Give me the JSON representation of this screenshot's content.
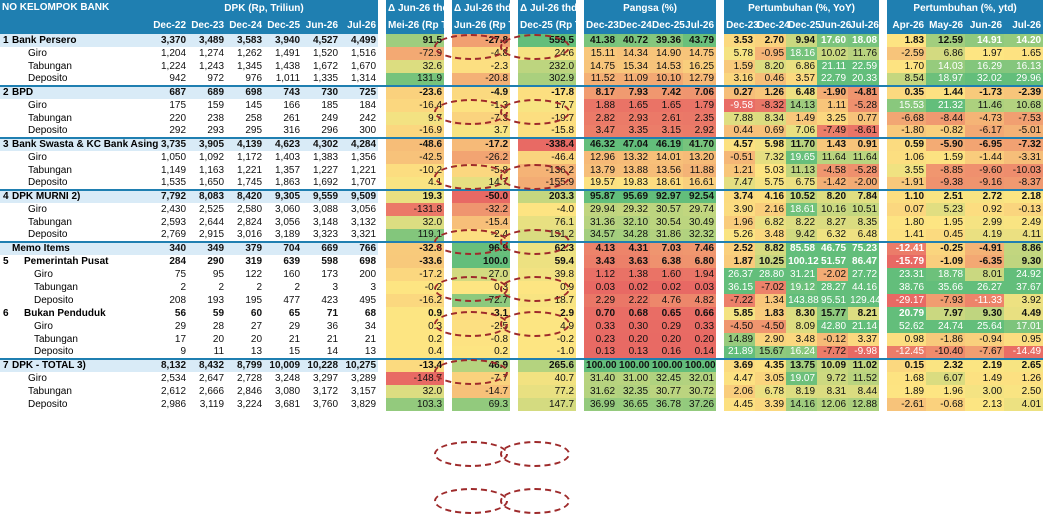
{
  "header": {
    "no": "NO",
    "kelompok": "KELOMPOK BANK",
    "dpk_title": "DPK (Rp, Triliun)",
    "dpk_cols": [
      "Dec-22",
      "Dec-23",
      "Dec-24",
      "Dec-25",
      "Jun-26",
      "Jul-26"
    ],
    "delta1_title": "Δ Jun-26 thd",
    "delta1_sub": "Mei-26 (Rp T)",
    "delta2_title": "Δ Jul-26 thd",
    "delta2_sub": "Jun-26 (Rp T)",
    "delta3_title": "Δ Jul-26 thd",
    "delta3_sub": "Dec-25 (Rp T)",
    "pangsa_title": "Pangsa (%)",
    "pangsa_cols": [
      "Dec-23",
      "Dec-24",
      "Dec-25",
      "Jul-26"
    ],
    "yoy_title": "Pertumbuhan (%, YoY)",
    "yoy_cols": [
      "Dec-23",
      "Dec-24",
      "Dec-25",
      "Jun-26",
      "Jul-26"
    ],
    "ytd_title": "Pertumbuhan (%, ytd)",
    "ytd_cols": [
      "Apr-26",
      "May-26",
      "Jun-26",
      "Jul-26"
    ]
  },
  "rows": [
    {
      "no": "1",
      "name": "Bank Persero",
      "type": "main",
      "dpk": [
        "3,370",
        "3,489",
        "3,583",
        "3,940",
        "4,527",
        "4,499"
      ],
      "d1": "91.5",
      "d2": "-27.8",
      "d3": "559.5",
      "pangsa": [
        "41.38",
        "40.72",
        "39.36",
        "43.79"
      ],
      "yoy": [
        "3.53",
        "2.70",
        "9.94",
        "17.60",
        "18.08"
      ],
      "ytd": [
        "1.83",
        "12.59",
        "14.91",
        "14.20"
      ]
    },
    {
      "no": "",
      "name": "Giro",
      "type": "sub",
      "dpk": [
        "1,204",
        "1,274",
        "1,262",
        "1,491",
        "1,520",
        "1,516"
      ],
      "d1": "-72.9",
      "d2": "-4.8",
      "d3": "24.6",
      "pangsa": [
        "15.11",
        "14.34",
        "14.90",
        "14.75"
      ],
      "yoy": [
        "5.78",
        "-0.95",
        "18.16",
        "10.02",
        "11.76"
      ],
      "ytd": [
        "-2.59",
        "6.86",
        "1.97",
        "1.65"
      ]
    },
    {
      "no": "",
      "name": "Tabungan",
      "type": "sub",
      "dpk": [
        "1,224",
        "1,243",
        "1,345",
        "1,438",
        "1,672",
        "1,670"
      ],
      "d1": "32.6",
      "d2": "-2.3",
      "d3": "232.0",
      "pangsa": [
        "14.75",
        "15.34",
        "14.53",
        "16.25"
      ],
      "yoy": [
        "1.59",
        "8.20",
        "6.86",
        "21.11",
        "22.59"
      ],
      "ytd": [
        "1.70",
        "14.03",
        "16.29",
        "16.13"
      ]
    },
    {
      "no": "",
      "name": "Deposito",
      "type": "sub",
      "dpk": [
        "942",
        "972",
        "976",
        "1,011",
        "1,335",
        "1,314"
      ],
      "d1": "131.9",
      "d2": "-20.8",
      "d3": "302.9",
      "pangsa": [
        "11.52",
        "11.09",
        "10.10",
        "12.79"
      ],
      "yoy": [
        "3.16",
        "0.46",
        "3.57",
        "22.79",
        "20.33"
      ],
      "ytd": [
        "8.54",
        "18.97",
        "32.02",
        "29.96"
      ]
    },
    {
      "no": "2",
      "name": "BPD",
      "type": "main",
      "dpk": [
        "687",
        "689",
        "698",
        "743",
        "730",
        "725"
      ],
      "d1": "-23.6",
      "d2": "-4.9",
      "d3": "-17.8",
      "pangsa": [
        "8.17",
        "7.93",
        "7.42",
        "7.06"
      ],
      "yoy": [
        "0.27",
        "1.26",
        "6.48",
        "-1.90",
        "-4.81"
      ],
      "ytd": [
        "0.35",
        "1.44",
        "-1.73",
        "-2.39"
      ]
    },
    {
      "no": "",
      "name": "Giro",
      "type": "sub",
      "dpk": [
        "175",
        "159",
        "145",
        "166",
        "185",
        "184"
      ],
      "d1": "-16.4",
      "d2": "-1.3",
      "d3": "17.7",
      "pangsa": [
        "1.88",
        "1.65",
        "1.65",
        "1.79"
      ],
      "yoy": [
        "-9.58",
        "-8.32",
        "14.13",
        "1.11",
        "-5.28"
      ],
      "ytd": [
        "15.53",
        "21.32",
        "11.46",
        "10.68"
      ]
    },
    {
      "no": "",
      "name": "Tabungan",
      "type": "sub",
      "dpk": [
        "220",
        "238",
        "258",
        "261",
        "249",
        "242"
      ],
      "d1": "9.7",
      "d2": "-7.3",
      "d3": "-19.7",
      "pangsa": [
        "2.82",
        "2.93",
        "2.61",
        "2.35"
      ],
      "yoy": [
        "7.88",
        "8.34",
        "1.49",
        "3.25",
        "0.77"
      ],
      "ytd": [
        "-6.68",
        "-8.44",
        "-4.73",
        "-7.53"
      ]
    },
    {
      "no": "",
      "name": "Deposito",
      "type": "sub",
      "dpk": [
        "292",
        "293",
        "295",
        "316",
        "296",
        "300"
      ],
      "d1": "-16.9",
      "d2": "3.7",
      "d3": "-15.8",
      "pangsa": [
        "3.47",
        "3.35",
        "3.15",
        "2.92"
      ],
      "yoy": [
        "0.44",
        "0.69",
        "7.06",
        "-7.49",
        "-8.61"
      ],
      "ytd": [
        "-1.80",
        "-0.82",
        "-6.17",
        "-5.01"
      ]
    },
    {
      "no": "3",
      "name": "Bank Swasta & KC Bank Asing",
      "type": "main",
      "dpk": [
        "3,735",
        "3,905",
        "4,139",
        "4,623",
        "4,302",
        "4,284"
      ],
      "d1": "-48.6",
      "d2": "-17.2",
      "d3": "-338.4",
      "pangsa": [
        "46.32",
        "47.04",
        "46.19",
        "41.70"
      ],
      "yoy": [
        "4.57",
        "5.98",
        "11.70",
        "1.43",
        "0.91"
      ],
      "ytd": [
        "0.59",
        "-5.90",
        "-6.95",
        "-7.32"
      ]
    },
    {
      "no": "",
      "name": "Giro",
      "type": "sub",
      "dpk": [
        "1,050",
        "1,092",
        "1,172",
        "1,403",
        "1,383",
        "1,356"
      ],
      "d1": "-42.5",
      "d2": "-26.2",
      "d3": "-46.4",
      "pangsa": [
        "12.96",
        "13.32",
        "14.01",
        "13.20"
      ],
      "yoy": [
        "-0.51",
        "7.32",
        "19.65",
        "11.64",
        "11.64"
      ],
      "ytd": [
        "1.06",
        "1.59",
        "-1.44",
        "-3.31"
      ]
    },
    {
      "no": "",
      "name": "Tabungan",
      "type": "sub",
      "dpk": [
        "1,149",
        "1,163",
        "1,221",
        "1,357",
        "1,227",
        "1,221"
      ],
      "d1": "-10.2",
      "d2": "-5.8",
      "d3": "-136.2",
      "pangsa": [
        "13.79",
        "13.88",
        "13.56",
        "11.88"
      ],
      "yoy": [
        "1.21",
        "5.03",
        "11.13",
        "-4.58",
        "-5.28"
      ],
      "ytd": [
        "3.55",
        "-8.85",
        "-9.60",
        "-10.03"
      ]
    },
    {
      "no": "",
      "name": "Deposito",
      "type": "sub",
      "dpk": [
        "1,535",
        "1,650",
        "1,745",
        "1,863",
        "1,692",
        "1,707"
      ],
      "d1": "4.1",
      "d2": "14.7",
      "d3": "-155.9",
      "pangsa": [
        "19.57",
        "19.83",
        "18.61",
        "16.61"
      ],
      "yoy": [
        "7.47",
        "5.75",
        "6.75",
        "-1.42",
        "-2.00"
      ],
      "ytd": [
        "-1.91",
        "-9.38",
        "-9.16",
        "-8.37"
      ]
    },
    {
      "no": "4",
      "name": "DPK MURNI 2)",
      "type": "main",
      "dpk": [
        "7,792",
        "8,083",
        "8,420",
        "9,305",
        "9,559",
        "9,509"
      ],
      "d1": "19.3",
      "d2": "-50.0",
      "d3": "203.3",
      "pangsa": [
        "95.87",
        "95.69",
        "92.97",
        "92.54"
      ],
      "yoy": [
        "3.74",
        "4.16",
        "10.52",
        "8.20",
        "7.84"
      ],
      "ytd": [
        "1.10",
        "2.51",
        "2.72",
        "2.18"
      ]
    },
    {
      "no": "",
      "name": "Giro",
      "type": "sub",
      "dpk": [
        "2,430",
        "2,525",
        "2,580",
        "3,060",
        "3,088",
        "3,056"
      ],
      "d1": "-131.8",
      "d2": "-32.2",
      "d3": "-4.0",
      "pangsa": [
        "29.94",
        "29.32",
        "30.57",
        "29.74"
      ],
      "yoy": [
        "3.90",
        "2.16",
        "18.61",
        "10.16",
        "10.51"
      ],
      "ytd": [
        "0.07",
        "5.23",
        "0.92",
        "-0.13"
      ]
    },
    {
      "no": "",
      "name": "Tabungan",
      "type": "sub",
      "dpk": [
        "2,593",
        "2,644",
        "2,824",
        "3,056",
        "3,148",
        "3,132"
      ],
      "d1": "32.0",
      "d2": "-15.4",
      "d3": "76.1",
      "pangsa": [
        "31.36",
        "32.10",
        "30.54",
        "30.49"
      ],
      "yoy": [
        "1.96",
        "6.82",
        "8.22",
        "8.27",
        "8.35"
      ],
      "ytd": [
        "1.80",
        "1.95",
        "2.99",
        "2.49"
      ]
    },
    {
      "no": "",
      "name": "Deposito",
      "type": "sub",
      "dpk": [
        "2,769",
        "2,915",
        "3,016",
        "3,189",
        "3,323",
        "3,321"
      ],
      "d1": "119.1",
      "d2": "-2.4",
      "d3": "131.2",
      "pangsa": [
        "34.57",
        "34.28",
        "31.86",
        "32.32"
      ],
      "yoy": [
        "5.26",
        "3.48",
        "9.42",
        "6.32",
        "6.48"
      ],
      "ytd": [
        "1.41",
        "0.45",
        "4.19",
        "4.11"
      ]
    },
    {
      "no": "",
      "name": "Memo Items",
      "type": "memo",
      "dpk": [
        "340",
        "349",
        "379",
        "704",
        "669",
        "766"
      ],
      "d1": "-32.8",
      "d2": "96.9",
      "d3": "62.3",
      "pangsa": [
        "4.13",
        "4.31",
        "7.03",
        "7.46"
      ],
      "yoy": [
        "2.52",
        "8.82",
        "85.58",
        "46.75",
        "75.23"
      ],
      "ytd": [
        "-12.41",
        "-0.25",
        "-4.91",
        "8.86"
      ]
    },
    {
      "no": "5",
      "name": "Pemerintah Pusat",
      "type": "submain",
      "dpk": [
        "284",
        "290",
        "319",
        "639",
        "598",
        "698"
      ],
      "d1": "-33.6",
      "d2": "100.0",
      "d3": "59.4",
      "pangsa": [
        "3.43",
        "3.63",
        "6.38",
        "6.80"
      ],
      "yoy": [
        "1.87",
        "10.25",
        "100.12",
        "51.57",
        "86.47"
      ],
      "ytd": [
        "-15.79",
        "-1.09",
        "-6.35",
        "9.30"
      ]
    },
    {
      "no": "",
      "name": "Giro",
      "type": "subsub",
      "dpk": [
        "75",
        "95",
        "122",
        "160",
        "173",
        "200"
      ],
      "d1": "-17.2",
      "d2": "27.0",
      "d3": "39.8",
      "pangsa": [
        "1.12",
        "1.38",
        "1.60",
        "1.94"
      ],
      "yoy": [
        "26.37",
        "28.80",
        "31.21",
        "-2.02",
        "27.72"
      ],
      "ytd": [
        "23.31",
        "18.78",
        "8.01",
        "24.92"
      ]
    },
    {
      "no": "",
      "name": "Tabungan",
      "type": "subsub",
      "dpk": [
        "2",
        "2",
        "2",
        "2",
        "3",
        "3"
      ],
      "d1": "-0.2",
      "d2": "0.3",
      "d3": "0.9",
      "pangsa": [
        "0.03",
        "0.02",
        "0.02",
        "0.03"
      ],
      "yoy": [
        "36.15",
        "-7.02",
        "19.12",
        "28.27",
        "44.16"
      ],
      "ytd": [
        "38.76",
        "35.66",
        "26.27",
        "37.67"
      ]
    },
    {
      "no": "",
      "name": "Deposito",
      "type": "subsub",
      "dpk": [
        "208",
        "193",
        "195",
        "477",
        "423",
        "495"
      ],
      "d1": "-16.2",
      "d2": "72.7",
      "d3": "18.7",
      "pangsa": [
        "2.29",
        "2.22",
        "4.76",
        "4.82"
      ],
      "yoy": [
        "-7.22",
        "1.34",
        "143.88",
        "95.51",
        "129.44"
      ],
      "ytd": [
        "-29.17",
        "-7.93",
        "-11.33",
        "3.92"
      ]
    },
    {
      "no": "6",
      "name": "Bukan Penduduk",
      "type": "submain",
      "dpk": [
        "56",
        "59",
        "60",
        "65",
        "71",
        "68"
      ],
      "d1": "0.9",
      "d2": "-3.1",
      "d3": "2.9",
      "pangsa": [
        "0.70",
        "0.68",
        "0.65",
        "0.66"
      ],
      "yoy": [
        "5.85",
        "1.83",
        "8.30",
        "15.77",
        "8.21"
      ],
      "ytd": [
        "20.79",
        "7.97",
        "9.30",
        "4.49"
      ]
    },
    {
      "no": "",
      "name": "Giro",
      "type": "subsub",
      "dpk": [
        "29",
        "28",
        "27",
        "29",
        "36",
        "34"
      ],
      "d1": "0.3",
      "d2": "-2.5",
      "d3": "4.9",
      "pangsa": [
        "0.33",
        "0.30",
        "0.29",
        "0.33"
      ],
      "yoy": [
        "-4.50",
        "-4.50",
        "8.09",
        "42.80",
        "21.14"
      ],
      "ytd": [
        "52.62",
        "24.74",
        "25.64",
        "17.01"
      ]
    },
    {
      "no": "",
      "name": "Tabungan",
      "type": "subsub",
      "dpk": [
        "17",
        "20",
        "20",
        "21",
        "21",
        "21"
      ],
      "d1": "0.2",
      "d2": "-0.8",
      "d3": "-0.2",
      "pangsa": [
        "0.23",
        "0.20",
        "0.20",
        "0.20"
      ],
      "yoy": [
        "14.89",
        "2.90",
        "3.48",
        "-0.12",
        "3.37"
      ],
      "ytd": [
        "0.98",
        "-1.86",
        "-0.94",
        "0.95"
      ]
    },
    {
      "no": "",
      "name": "Deposito",
      "type": "subsub",
      "dpk": [
        "9",
        "11",
        "13",
        "15",
        "14",
        "13"
      ],
      "d1": "0.4",
      "d2": "0.2",
      "d3": "-1.0",
      "pangsa": [
        "0.13",
        "0.13",
        "0.16",
        "0.14"
      ],
      "yoy": [
        "21.89",
        "15.67",
        "16.24",
        "-7.72",
        "-9.98"
      ],
      "ytd": [
        "-12.45",
        "-10.40",
        "-7.67",
        "-14.49"
      ]
    },
    {
      "no": "7",
      "name": "DPK - TOTAL 3)",
      "type": "main",
      "dpk": [
        "8,132",
        "8,432",
        "8,799",
        "10,009",
        "10,228",
        "10,275"
      ],
      "d1": "-13.4",
      "d2": "46.9",
      "d3": "265.6",
      "pangsa": [
        "100.00",
        "100.00",
        "100.00",
        "100.00"
      ],
      "yoy": [
        "3.69",
        "4.35",
        "13.75",
        "10.09",
        "11.02"
      ],
      "ytd": [
        "0.15",
        "2.32",
        "2.19",
        "2.65"
      ]
    },
    {
      "no": "",
      "name": "Giro",
      "type": "sub",
      "dpk": [
        "2,534",
        "2,647",
        "2,728",
        "3,248",
        "3,297",
        "3,289"
      ],
      "d1": "-148.7",
      "d2": "-7.7",
      "d3": "40.7",
      "pangsa": [
        "31.40",
        "31.00",
        "32.45",
        "32.01"
      ],
      "yoy": [
        "4.47",
        "3.05",
        "19.07",
        "9.72",
        "11.52"
      ],
      "ytd": [
        "1.68",
        "6.07",
        "1.49",
        "1.26"
      ]
    },
    {
      "no": "",
      "name": "Tabungan",
      "type": "sub",
      "dpk": [
        "2,612",
        "2,666",
        "2,846",
        "3,080",
        "3,172",
        "3,157"
      ],
      "d1": "32.0",
      "d2": "-14.7",
      "d3": "77.2",
      "pangsa": [
        "31.62",
        "32.35",
        "30.77",
        "30.72"
      ],
      "yoy": [
        "2.06",
        "6.78",
        "8.19",
        "8.31",
        "8.44"
      ],
      "ytd": [
        "1.89",
        "1.96",
        "3.00",
        "2.50"
      ]
    },
    {
      "no": "",
      "name": "Deposito",
      "type": "sub",
      "dpk": [
        "2,986",
        "3,119",
        "3,224",
        "3,681",
        "3,760",
        "3,829"
      ],
      "d1": "103.3",
      "d2": "69.3",
      "d3": "147.7",
      "pangsa": [
        "36.99",
        "36.65",
        "36.78",
        "37.26"
      ],
      "yoy": [
        "4.45",
        "3.39",
        "14.16",
        "12.06",
        "12.88"
      ],
      "ytd": [
        "-2.61",
        "-0.68",
        "2.13",
        "4.01"
      ]
    }
  ]
}
